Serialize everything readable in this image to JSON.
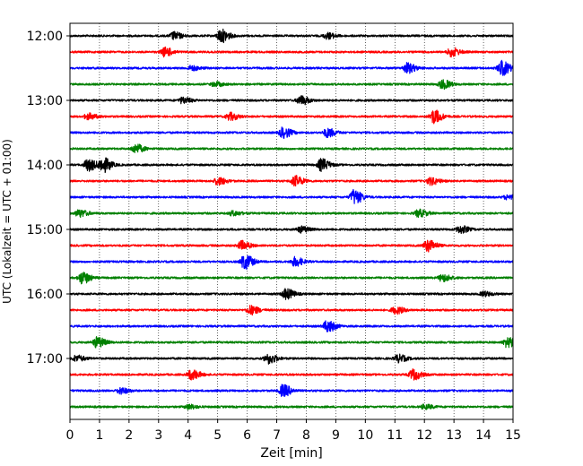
{
  "chart_data": {
    "type": "line",
    "xlabel": "Zeit  [min]",
    "ylabel": "UTC (Lokalzeit = UTC + 01:00)",
    "xlim": [
      0,
      15
    ],
    "x_ticks": [
      "0",
      "1",
      "2",
      "3",
      "4",
      "5",
      "6",
      "7",
      "8",
      "9",
      "10",
      "11",
      "12",
      "13",
      "14",
      "15"
    ],
    "y_ticks": [
      {
        "label": "12:00",
        "row": 0
      },
      {
        "label": "13:00",
        "row": 4
      },
      {
        "label": "14:00",
        "row": 8
      },
      {
        "label": "15:00",
        "row": 12
      },
      {
        "label": "16:00",
        "row": 16
      },
      {
        "label": "17:00",
        "row": 20
      }
    ],
    "grid": "vertical dotted at each minute",
    "colors": [
      "#000000",
      "#ff0000",
      "#0000ff",
      "#008000"
    ],
    "rows": [
      {
        "start": "12:00",
        "color": "#000000",
        "events": [
          [
            3.5,
            0.5
          ],
          [
            5.1,
            0.9
          ],
          [
            8.7,
            0.4
          ]
        ]
      },
      {
        "start": "12:15",
        "color": "#ff0000",
        "events": [
          [
            3.2,
            0.6
          ],
          [
            12.9,
            0.6
          ]
        ]
      },
      {
        "start": "12:30",
        "color": "#0000ff",
        "events": [
          [
            4.1,
            0.3
          ],
          [
            11.4,
            0.7
          ],
          [
            14.6,
            1.0
          ]
        ]
      },
      {
        "start": "12:45",
        "color": "#008000",
        "events": [
          [
            4.9,
            0.3
          ],
          [
            12.6,
            0.6
          ]
        ]
      },
      {
        "start": "13:00",
        "color": "#000000",
        "events": [
          [
            3.8,
            0.4
          ],
          [
            7.8,
            0.6
          ]
        ]
      },
      {
        "start": "13:15",
        "color": "#ff0000",
        "events": [
          [
            0.6,
            0.4
          ],
          [
            5.4,
            0.5
          ],
          [
            12.3,
            0.9
          ]
        ]
      },
      {
        "start": "13:30",
        "color": "#0000ff",
        "events": [
          [
            7.2,
            0.7
          ],
          [
            8.7,
            0.6
          ]
        ]
      },
      {
        "start": "13:45",
        "color": "#008000",
        "events": [
          [
            2.2,
            0.6
          ]
        ]
      },
      {
        "start": "14:00",
        "color": "#000000",
        "events": [
          [
            0.6,
            0.8
          ],
          [
            1.1,
            1.0
          ],
          [
            8.5,
            0.8
          ]
        ]
      },
      {
        "start": "14:15",
        "color": "#ff0000",
        "events": [
          [
            5.0,
            0.5
          ],
          [
            7.6,
            0.7
          ],
          [
            12.2,
            0.5
          ]
        ]
      },
      {
        "start": "14:30",
        "color": "#0000ff",
        "events": [
          [
            9.6,
            1.0
          ],
          [
            14.8,
            0.3
          ]
        ]
      },
      {
        "start": "14:45",
        "color": "#008000",
        "events": [
          [
            0.3,
            0.5
          ],
          [
            5.5,
            0.3
          ],
          [
            11.8,
            0.5
          ]
        ]
      },
      {
        "start": "15:00",
        "color": "#000000",
        "events": [
          [
            7.8,
            0.4
          ],
          [
            13.2,
            0.5
          ]
        ]
      },
      {
        "start": "15:15",
        "color": "#ff0000",
        "events": [
          [
            5.8,
            0.6
          ],
          [
            12.1,
            0.8
          ]
        ]
      },
      {
        "start": "15:30",
        "color": "#0000ff",
        "events": [
          [
            5.9,
            1.0
          ],
          [
            7.6,
            0.6
          ]
        ]
      },
      {
        "start": "15:45",
        "color": "#008000",
        "events": [
          [
            0.4,
            0.8
          ],
          [
            12.6,
            0.5
          ]
        ]
      },
      {
        "start": "16:00",
        "color": "#000000",
        "events": [
          [
            7.3,
            0.7
          ],
          [
            14.0,
            0.3
          ]
        ]
      },
      {
        "start": "16:15",
        "color": "#ff0000",
        "events": [
          [
            6.1,
            0.6
          ],
          [
            11.0,
            0.5
          ]
        ]
      },
      {
        "start": "16:30",
        "color": "#0000ff",
        "events": [
          [
            8.7,
            0.8
          ]
        ]
      },
      {
        "start": "16:45",
        "color": "#008000",
        "events": [
          [
            0.9,
            0.7
          ],
          [
            14.8,
            0.7
          ]
        ]
      },
      {
        "start": "17:00",
        "color": "#000000",
        "events": [
          [
            0.2,
            0.4
          ],
          [
            6.7,
            0.7
          ],
          [
            11.1,
            0.5
          ]
        ]
      },
      {
        "start": "17:15",
        "color": "#ff0000",
        "events": [
          [
            4.1,
            0.7
          ],
          [
            11.6,
            0.7
          ]
        ]
      },
      {
        "start": "17:30",
        "color": "#0000ff",
        "events": [
          [
            1.7,
            0.4
          ],
          [
            7.2,
            0.8
          ]
        ]
      },
      {
        "start": "17:45",
        "color": "#008000",
        "events": [
          [
            4.0,
            0.3
          ],
          [
            12.0,
            0.3
          ]
        ]
      }
    ]
  }
}
